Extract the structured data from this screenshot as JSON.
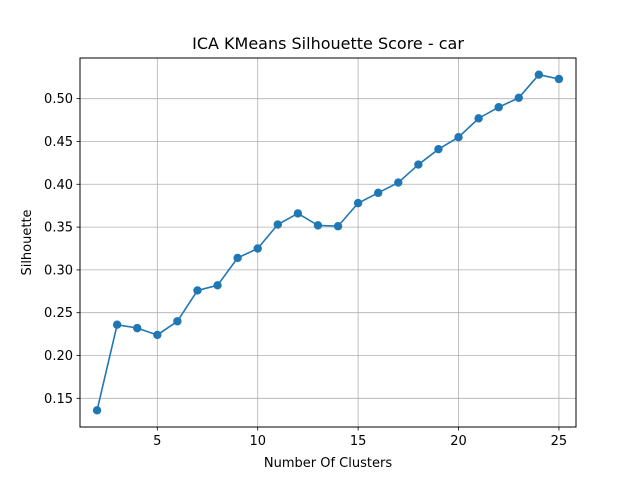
{
  "chart_data": {
    "type": "line",
    "title": "ICA KMeans Silhouette Score - car",
    "xlabel": "Number Of Clusters",
    "ylabel": "Silhouette",
    "xlim": [
      1.15,
      25.85
    ],
    "ylim": [
      0.1165,
      0.5475
    ],
    "xticks": [
      5,
      10,
      15,
      20,
      25
    ],
    "yticks": [
      0.15,
      0.2,
      0.25,
      0.3,
      0.35,
      0.4,
      0.45,
      0.5
    ],
    "ytick_labels": [
      "0.15",
      "0.20",
      "0.25",
      "0.30",
      "0.35",
      "0.40",
      "0.45",
      "0.50"
    ],
    "grid": true,
    "series": [
      {
        "color": "#1f77b4",
        "marker": "circle",
        "x": [
          2,
          3,
          4,
          5,
          6,
          7,
          8,
          9,
          10,
          11,
          12,
          13,
          14,
          15,
          16,
          17,
          18,
          19,
          20,
          21,
          22,
          23,
          24,
          25
        ],
        "y": [
          0.136,
          0.236,
          0.232,
          0.224,
          0.24,
          0.276,
          0.282,
          0.314,
          0.325,
          0.353,
          0.366,
          0.352,
          0.351,
          0.378,
          0.39,
          0.402,
          0.423,
          0.441,
          0.455,
          0.477,
          0.49,
          0.501,
          0.528,
          0.523
        ]
      }
    ]
  }
}
